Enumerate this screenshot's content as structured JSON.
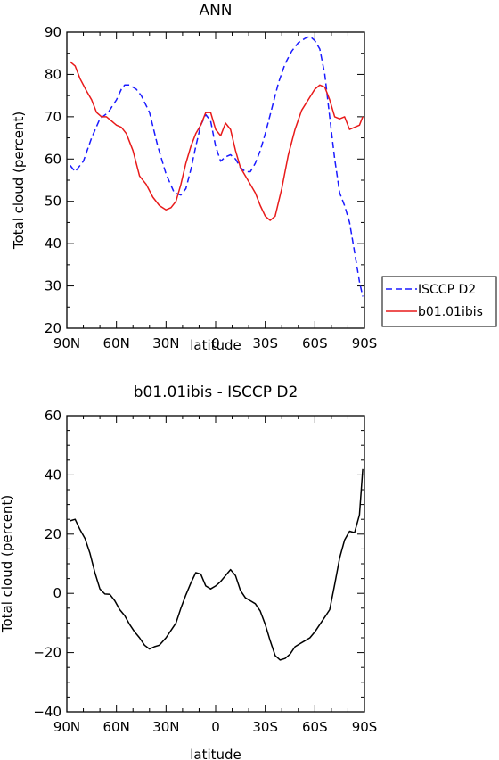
{
  "chart_data": [
    {
      "type": "line",
      "title": "ANN",
      "xlabel": "latitude",
      "ylabel": "Total cloud (percent)",
      "xlim": [
        90,
        -90
      ],
      "ylim": [
        20,
        90
      ],
      "xticks": [
        90,
        60,
        30,
        0,
        -30,
        -60,
        -90
      ],
      "xticklabels": [
        "90N",
        "60N",
        "30N",
        "0",
        "30S",
        "60S",
        "90S"
      ],
      "yticks": [
        20,
        30,
        40,
        50,
        60,
        70,
        80,
        90
      ],
      "legend_position": "right",
      "series": [
        {
          "name": "ISCCP D2",
          "color": "#1a1aff",
          "dash": "dashed",
          "x": [
            88,
            85,
            80,
            75,
            70,
            65,
            60,
            57,
            55,
            52,
            48,
            45,
            40,
            35,
            30,
            25,
            21,
            18,
            15,
            12,
            9,
            6,
            3,
            0,
            -3,
            -6,
            -9,
            -12,
            -15,
            -18,
            -21,
            -24,
            -27,
            -30,
            -34,
            -38,
            -42,
            -46,
            -50,
            -54,
            -57,
            -60,
            -63,
            -66,
            -69,
            -72,
            -75,
            -78,
            -81,
            -84,
            -87,
            -89
          ],
          "y": [
            58.5,
            57,
            59.5,
            65,
            69.5,
            71,
            74,
            76.5,
            77.5,
            77.5,
            76.5,
            75,
            71,
            63,
            56.5,
            52,
            51.5,
            53,
            57.5,
            63,
            68,
            70.5,
            69,
            63,
            59.5,
            60.5,
            61,
            60,
            58,
            57,
            57,
            59,
            62,
            66,
            72,
            78,
            82.5,
            85.5,
            87.5,
            88.5,
            89,
            88,
            86,
            80,
            70,
            60,
            52,
            49,
            45,
            38,
            31,
            27.5
          ]
        },
        {
          "name": "b01.01ibis",
          "color": "#e81a1a",
          "dash": "solid",
          "x": [
            88,
            85,
            82,
            78,
            75,
            72,
            69,
            66,
            63,
            60,
            57,
            54,
            50,
            46,
            42,
            38,
            34,
            30,
            27,
            24,
            21,
            18,
            15,
            12,
            9,
            6,
            3,
            0,
            -3,
            -6,
            -9,
            -12,
            -15,
            -18,
            -21,
            -24,
            -27,
            -30,
            -33,
            -36,
            -40,
            -44,
            -48,
            -52,
            -56,
            -60,
            -63,
            -66,
            -69,
            -72,
            -75,
            -78,
            -81,
            -84,
            -87,
            -89
          ],
          "y": [
            83,
            82,
            79,
            76,
            74,
            71,
            70,
            70,
            69,
            68,
            67.5,
            66,
            62,
            56,
            54,
            51,
            49,
            48,
            48.5,
            50,
            54,
            59,
            63,
            66,
            68,
            71,
            71,
            67,
            65.5,
            68.5,
            67,
            62,
            58,
            56,
            54,
            52,
            49,
            46.5,
            45.5,
            46.5,
            53,
            61,
            67,
            71.5,
            74,
            76.5,
            77.5,
            77,
            74,
            70,
            69.5,
            70,
            67,
            67.5,
            68,
            70
          ]
        }
      ]
    },
    {
      "type": "line",
      "title": "b01.01ibis - ISCCP D2",
      "xlabel": "latitude",
      "ylabel": "Total cloud (percent)",
      "xlim": [
        90,
        -90
      ],
      "ylim": [
        -40,
        60
      ],
      "xticks": [
        90,
        60,
        30,
        0,
        -30,
        -60,
        -90
      ],
      "xticklabels": [
        "90N",
        "60N",
        "30N",
        "0",
        "30S",
        "60S",
        "90S"
      ],
      "yticks": [
        -40,
        -20,
        0,
        20,
        40,
        60
      ],
      "series": [
        {
          "color": "#000000",
          "dash": "solid",
          "x": [
            88,
            85,
            82,
            79,
            76,
            73,
            70,
            67,
            64,
            61,
            58,
            55,
            52,
            49,
            46,
            43,
            40,
            37,
            34,
            30,
            27,
            24,
            21,
            18,
            15,
            12,
            9,
            6,
            3,
            0,
            -3,
            -6,
            -9,
            -12,
            -15,
            -18,
            -21,
            -24,
            -27,
            -30,
            -33,
            -36,
            -39,
            -42,
            -45,
            -48,
            -51,
            -54,
            -57,
            -60,
            -63,
            -66,
            -69,
            -72,
            -75,
            -78,
            -81,
            -84,
            -87,
            -89
          ],
          "y": [
            24.5,
            25,
            21.5,
            18.5,
            13.5,
            7,
            1.5,
            -0.2,
            -0.3,
            -2.5,
            -5.5,
            -7.5,
            -10.5,
            -13,
            -15,
            -17.5,
            -18.8,
            -18,
            -17.5,
            -15,
            -12.5,
            -10,
            -5,
            -0.5,
            3.5,
            7,
            6.5,
            2.5,
            1.5,
            2.5,
            4,
            6,
            8,
            6,
            1,
            -1.5,
            -2.5,
            -3.5,
            -6,
            -10.5,
            -16,
            -21,
            -22.5,
            -22,
            -20.5,
            -18,
            -17,
            -16,
            -15,
            -13,
            -10.5,
            -8,
            -5.5,
            3,
            12,
            18,
            21,
            20.5,
            26.5,
            42
          ]
        }
      ]
    }
  ]
}
